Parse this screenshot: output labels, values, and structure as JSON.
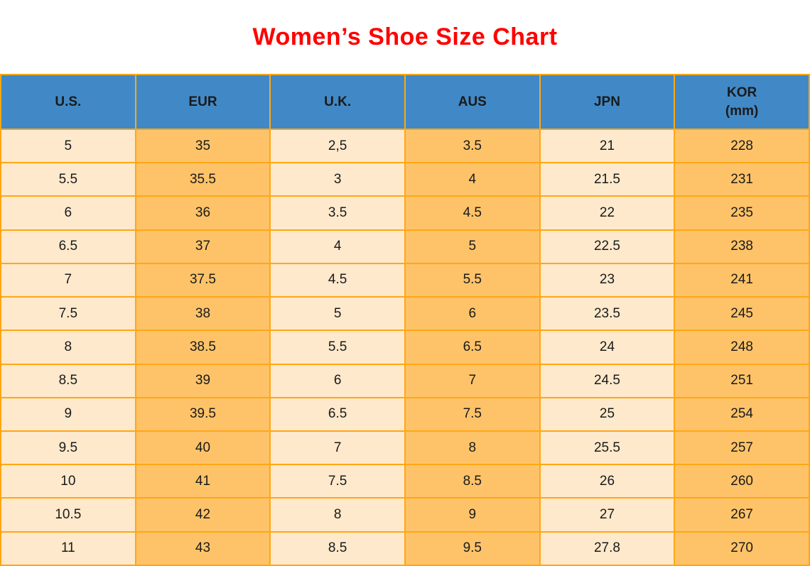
{
  "title": "Women’s Shoe Size Chart",
  "colors": {
    "title_color": "#FF0000",
    "header_bg": "#4189C6",
    "cell_cream": "#FEE9CC",
    "cell_orange": "#FEC369",
    "border_color": "#FFA713",
    "text_color": "#1A1A1A"
  },
  "table": {
    "headers": [
      "U.S.",
      "EUR",
      "U.K.",
      "AUS",
      "JPN",
      "KOR\n(mm)"
    ]
  },
  "chart_data": {
    "type": "table",
    "title": "Women’s Shoe Size Chart",
    "columns": [
      "U.S.",
      "EUR",
      "U.K.",
      "AUS",
      "JPN",
      "KOR (mm)"
    ],
    "rows": [
      [
        "5",
        "35",
        "2,5",
        "3.5",
        "21",
        "228"
      ],
      [
        "5.5",
        "35.5",
        "3",
        "4",
        "21.5",
        "231"
      ],
      [
        "6",
        "36",
        "3.5",
        "4.5",
        "22",
        "235"
      ],
      [
        "6.5",
        "37",
        "4",
        "5",
        "22.5",
        "238"
      ],
      [
        "7",
        "37.5",
        "4.5",
        "5.5",
        "23",
        "241"
      ],
      [
        "7.5",
        "38",
        "5",
        "6",
        "23.5",
        "245"
      ],
      [
        "8",
        "38.5",
        "5.5",
        "6.5",
        "24",
        "248"
      ],
      [
        "8.5",
        "39",
        "6",
        "7",
        "24.5",
        "251"
      ],
      [
        "9",
        "39.5",
        "6.5",
        "7.5",
        "25",
        "254"
      ],
      [
        "9.5",
        "40",
        "7",
        "8",
        "25.5",
        "257"
      ],
      [
        "10",
        "41",
        "7.5",
        "8.5",
        "26",
        "260"
      ],
      [
        "10.5",
        "42",
        "8",
        "9",
        "27",
        "267"
      ],
      [
        "11",
        "43",
        "8.5",
        "9.5",
        "27.8",
        "270"
      ]
    ]
  }
}
